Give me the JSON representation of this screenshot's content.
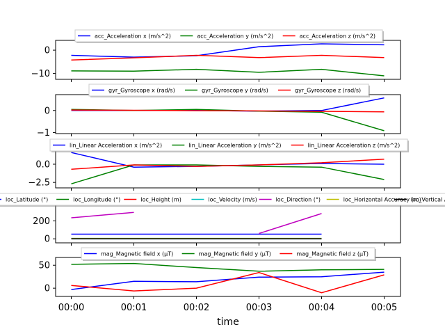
{
  "xlabel": "time",
  "x_ticks": [
    "00:00",
    "00:01",
    "00:02",
    "00:03",
    "00:04",
    "00:05"
  ],
  "chart_data": [
    {
      "type": "line",
      "name_hint": "acc",
      "x": [
        0,
        1,
        2,
        3,
        4,
        5
      ],
      "ylim": [
        -12.5,
        4.2
      ],
      "yticks": [
        0,
        -10
      ],
      "ytick_labels": [
        "0",
        "−10"
      ],
      "series": [
        {
          "name": "acc_Acceleration x (m/s^2)",
          "color": "#0000ff",
          "values": [
            -2.2,
            -3.0,
            -2.4,
            1.5,
            2.7,
            2.3
          ]
        },
        {
          "name": "acc_Acceleration y (m/s^2)",
          "color": "#008000",
          "values": [
            -8.9,
            -9.0,
            -8.2,
            -9.5,
            -8.2,
            -11.0
          ]
        },
        {
          "name": "acc_Acceleration z (m/s^2)",
          "color": "#ff0000",
          "values": [
            -4.2,
            -3.3,
            -2.2,
            -3.2,
            -2.2,
            -3.2
          ]
        }
      ]
    },
    {
      "type": "line",
      "name_hint": "gyr",
      "x": [
        0,
        1,
        2,
        3,
        4,
        5
      ],
      "ylim": [
        -1.05,
        0.72
      ],
      "yticks": [
        0,
        -1
      ],
      "ytick_labels": [
        "0",
        "−1"
      ],
      "series": [
        {
          "name": "gyr_Gyroscope x (rad/s)",
          "color": "#0000ff",
          "values": [
            0.0,
            0.0,
            0.0,
            -0.03,
            0.0,
            0.57
          ]
        },
        {
          "name": "gyr_Gyroscope y (rad/s)",
          "color": "#008000",
          "values": [
            0.05,
            0.0,
            0.05,
            -0.03,
            -0.08,
            -0.92
          ]
        },
        {
          "name": "gyr_Gyroscope z (rad/s)",
          "color": "#ff0000",
          "values": [
            0.02,
            0.01,
            -0.01,
            -0.02,
            -0.04,
            -0.06
          ]
        }
      ]
    },
    {
      "type": "line",
      "name_hint": "lin",
      "x": [
        0,
        1,
        2,
        3,
        4,
        5
      ],
      "ylim": [
        -3.25,
        2.1
      ],
      "yticks": [
        0,
        -2.5
      ],
      "ytick_labels": [
        "0.0",
        "−2.5"
      ],
      "series": [
        {
          "name": "lin_Linear Acceleration x (m/s^2)",
          "color": "#0000ff",
          "values": [
            1.6,
            -0.4,
            -0.3,
            -0.1,
            0.1,
            0.0
          ]
        },
        {
          "name": "lin_Linear Acceleration y (m/s^2)",
          "color": "#008000",
          "values": [
            -2.7,
            -0.1,
            -0.1,
            -0.3,
            -0.4,
            -2.1
          ]
        },
        {
          "name": "lin_Linear Acceleration z (m/s^2)",
          "color": "#ff0000",
          "values": [
            -0.7,
            -0.1,
            -0.3,
            -0.1,
            0.2,
            0.7
          ]
        }
      ]
    },
    {
      "type": "line",
      "name_hint": "loc",
      "x": [
        0,
        1,
        2,
        3,
        4,
        5
      ],
      "ylim": [
        -45,
        398
      ],
      "yticks": [
        0,
        200
      ],
      "ytick_labels": [
        "0",
        "200"
      ],
      "series": [
        {
          "name": "loc_Latitude (°)",
          "color": "#0000ff",
          "values": [
            52,
            52,
            52,
            52,
            52,
            null
          ]
        },
        {
          "name": "loc_Longitude (°)",
          "color": "#008000",
          "values": [
            5,
            5,
            5,
            5,
            5,
            null
          ]
        },
        {
          "name": "loc_Height (m)",
          "color": "#ff0000",
          "values": [
            2,
            2,
            2,
            2,
            2,
            null
          ]
        },
        {
          "name": "loc_Velocity (m/s)",
          "color": "#00bfbf",
          "values": [
            0,
            0,
            0,
            0,
            0,
            null
          ]
        },
        {
          "name": "loc_Direction (°)",
          "color": "#bf00bf",
          "values": [
            235,
            295,
            null,
            60,
            282,
            null
          ]
        },
        {
          "name": "loc_Horizontal Accuracy (m)",
          "color": "#bfbf00",
          "values": [
            3,
            3,
            3,
            3,
            3,
            null
          ]
        },
        {
          "name": "loc_Vertical Accuracy (m)",
          "color": "#000000",
          "values": [
            1,
            1,
            1,
            1,
            1,
            null
          ]
        }
      ]
    },
    {
      "type": "line",
      "name_hint": "mag",
      "x": [
        0,
        1,
        2,
        3,
        4,
        5
      ],
      "ylim": [
        -18,
        67
      ],
      "yticks": [
        0,
        50
      ],
      "ytick_labels": [
        "0",
        "50"
      ],
      "series": [
        {
          "name": "mag_Magnetic field x (µT)",
          "color": "#0000ff",
          "values": [
            -3,
            15,
            14,
            24,
            25,
            35
          ]
        },
        {
          "name": "mag_Magnetic field y (µT)",
          "color": "#008000",
          "values": [
            52,
            54,
            45,
            37,
            40,
            41
          ]
        },
        {
          "name": "mag_Magnetic field z (µT)",
          "color": "#ff0000",
          "values": [
            6,
            -6,
            0,
            34,
            -10,
            29
          ]
        }
      ]
    }
  ]
}
